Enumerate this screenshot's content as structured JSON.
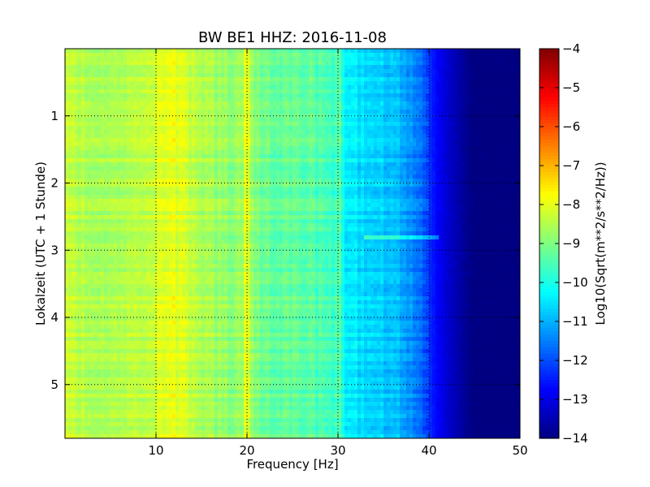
{
  "chart_data": {
    "type": "heatmap",
    "title": "BW BE1 HHZ: 2016-11-08",
    "xlabel": "Frequency [Hz]",
    "ylabel": "Lokalzeit (UTC + 1 Stunde)",
    "xlim": [
      0,
      50
    ],
    "ylim": [
      0,
      5.8
    ],
    "y_inverted": true,
    "x_ticks": [
      10,
      20,
      30,
      40,
      50
    ],
    "y_ticks": [
      1,
      2,
      3,
      4,
      5
    ],
    "grid": true,
    "colormap": "jet",
    "colorbar": {
      "label": "Log10(Sqrt(m**2/s**2/Hz))",
      "min": -14,
      "max": -4,
      "ticks": [
        -4,
        -5,
        -6,
        -7,
        -8,
        -9,
        -10,
        -11,
        -12,
        -13,
        -14
      ]
    },
    "spectrum_profile": {
      "frequency_hz": [
        0,
        2,
        5,
        8,
        10,
        12,
        15,
        18,
        20,
        22,
        25,
        28,
        30,
        31,
        33,
        35,
        37,
        39,
        40,
        41,
        42,
        43,
        44,
        45,
        50
      ],
      "log10_amplitude": [
        -8.4,
        -8.5,
        -8.6,
        -8.5,
        -8.2,
        -8.0,
        -8.5,
        -8.9,
        -8.6,
        -9.2,
        -9.3,
        -9.5,
        -9.8,
        -10.4,
        -10.6,
        -10.8,
        -11.0,
        -11.6,
        -12.3,
        -12.8,
        -13.2,
        -13.5,
        -13.8,
        -14.0,
        -14.0
      ]
    },
    "features": [
      {
        "frequency_hz": 20,
        "description": "narrow line"
      },
      {
        "frequency_hz": 30,
        "description": "narrow line"
      },
      {
        "time_hours": 2.8,
        "frequency_range_hz": [
          33,
          41
        ],
        "description": "horizontal band"
      }
    ]
  }
}
